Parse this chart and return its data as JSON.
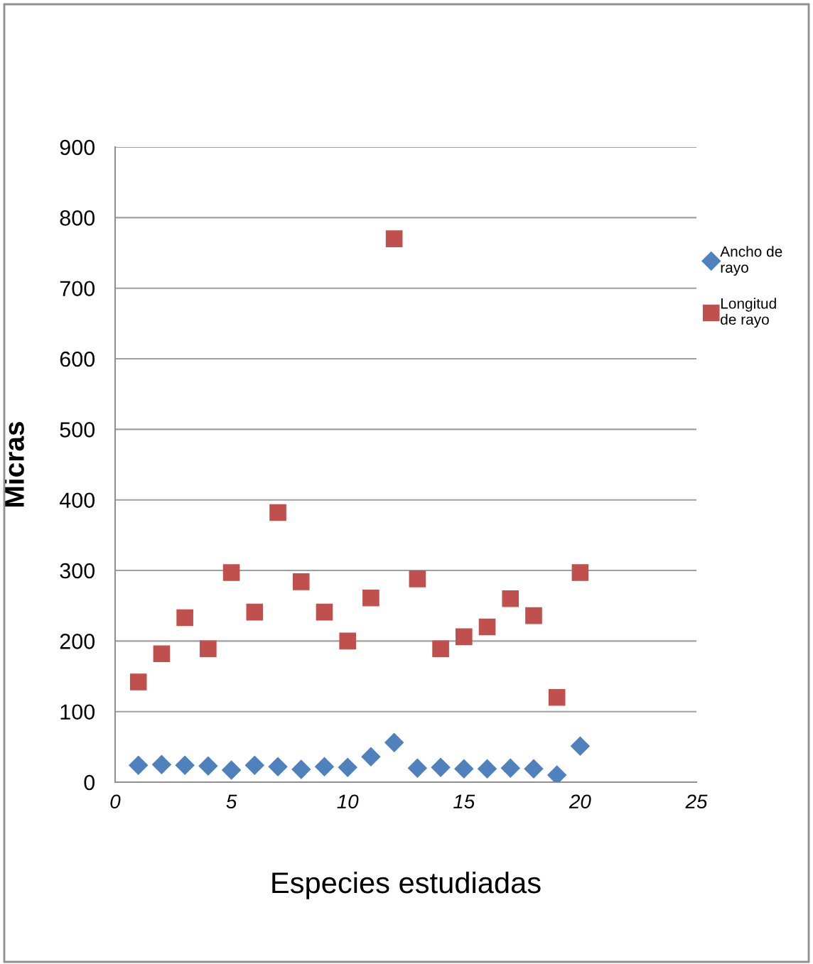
{
  "chart_data": {
    "type": "scatter",
    "xlabel": "Especies estudiadas",
    "ylabel": "Micras",
    "x": [
      1,
      2,
      3,
      4,
      5,
      6,
      7,
      8,
      9,
      10,
      11,
      12,
      13,
      14,
      15,
      16,
      17,
      18,
      19,
      20
    ],
    "series": [
      {
        "name": "Ancho de\nrayo",
        "color": "#4f81bd",
        "marker": "diamond",
        "values": [
          24,
          25,
          24,
          23,
          17,
          24,
          22,
          18,
          22,
          21,
          36,
          56,
          20,
          21,
          19,
          19,
          20,
          19,
          10,
          51
        ]
      },
      {
        "name": "Longitud\nde rayo",
        "color": "#c0504d",
        "marker": "square",
        "values": [
          142,
          182,
          233,
          189,
          297,
          241,
          382,
          284,
          241,
          200,
          261,
          770,
          288,
          189,
          206,
          220,
          260,
          236,
          120,
          297
        ]
      }
    ],
    "xlim": [
      0,
      25
    ],
    "xticks": [
      0,
      5,
      10,
      15,
      20,
      25
    ],
    "ylim": [
      0,
      900
    ],
    "yticks": [
      0,
      100,
      200,
      300,
      400,
      500,
      600,
      700,
      800,
      900
    ],
    "grid": "y",
    "legend": "right"
  }
}
